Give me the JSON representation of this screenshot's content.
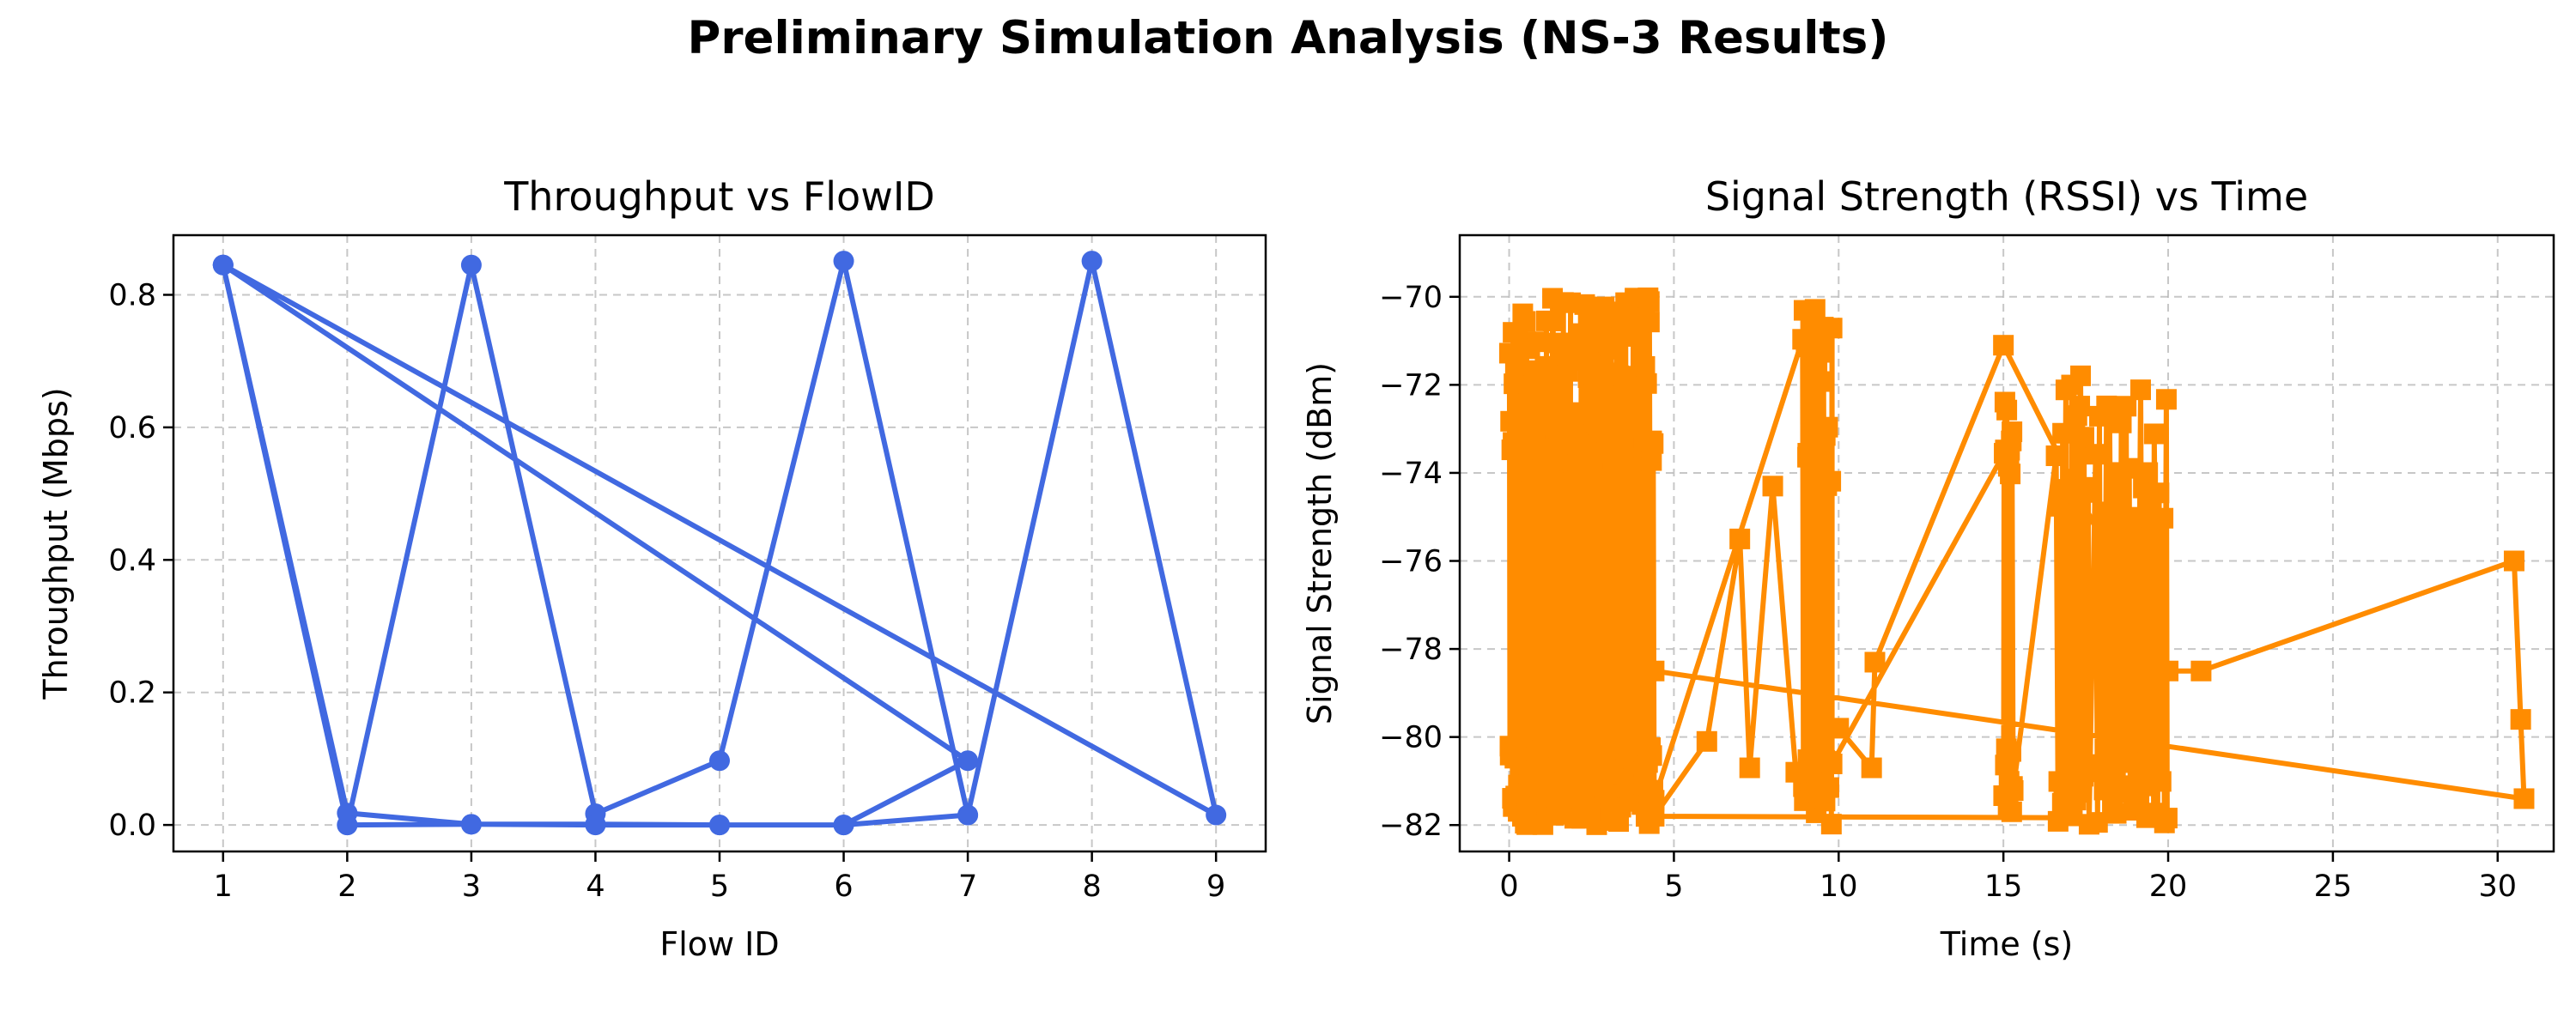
{
  "figure": {
    "title": "Preliminary Simulation Analysis (NS-3 Results)"
  },
  "chart_data": [
    {
      "type": "line",
      "title": "Throughput vs FlowID",
      "xlabel": "Flow ID",
      "ylabel": "Throughput (Mbps)",
      "xlim": [
        0.6,
        9.4
      ],
      "ylim": [
        -0.04,
        0.89
      ],
      "xticks": [
        1,
        2,
        3,
        4,
        5,
        6,
        7,
        8,
        9
      ],
      "yticks": [
        0.0,
        0.2,
        0.4,
        0.6,
        0.8
      ],
      "ytick_labels": [
        "0.0",
        "0.2",
        "0.4",
        "0.6",
        "0.8"
      ],
      "grid": true,
      "color": "#4169E1",
      "marker": "circle",
      "series": [
        {
          "x": [
            1,
            2,
            3,
            4,
            5,
            6,
            7,
            1,
            2,
            3,
            4,
            5,
            6,
            7,
            8,
            9,
            1,
            2,
            3,
            4,
            5,
            6,
            7
          ],
          "values": [
            0.845,
            0.018,
            0.001,
            0.001,
            0.0,
            0.0,
            0.097,
            0.845,
            0.0,
            0.845,
            0.017,
            0.097,
            0.851,
            0.015,
            0.851,
            0.015,
            0.845,
            0.0,
            0.001,
            0.0,
            0.0,
            0.0,
            0.015
          ]
        }
      ]
    },
    {
      "type": "line",
      "title": "Signal Strength (RSSI) vs Time",
      "xlabel": "Time (s)",
      "ylabel": "Signal Strength (dBm)",
      "xlim": [
        -1.5,
        31.7
      ],
      "ylim": [
        -82.6,
        -68.6
      ],
      "xticks": [
        0,
        5,
        10,
        15,
        20,
        25,
        30
      ],
      "yticks": [
        -82,
        -80,
        -78,
        -76,
        -74,
        -72,
        -70
      ],
      "ytick_labels": [
        "−82",
        "−80",
        "−78",
        "−76",
        "−74",
        "−72",
        "−70"
      ],
      "grid": true,
      "color": "#FF8C00",
      "marker": "square",
      "dense_clusters": [
        {
          "x_range": [
            0,
            4.4
          ],
          "points": 260,
          "y_range": [
            -82,
            -70
          ]
        },
        {
          "x_range": [
            8.9,
            9.8
          ],
          "points": 40,
          "y_range": [
            -82,
            -70.2
          ]
        },
        {
          "x_range": [
            15.0,
            15.3
          ],
          "points": 20,
          "y_range": [
            -81.8,
            -71.1
          ]
        },
        {
          "x_range": [
            16.6,
            17.6
          ],
          "points": 30,
          "y_range": [
            -82,
            -71.7
          ]
        },
        {
          "x_range": [
            17.8,
            20.0
          ],
          "points": 40,
          "y_range": [
            -82,
            -71.9
          ]
        }
      ],
      "series": [
        {
          "x": [
            4.4,
            6.0,
            7.0,
            7.3,
            8.0,
            8.7,
            10.0,
            11.0,
            11.1,
            15.0,
            20.0,
            21.0,
            30.5,
            30.7,
            30.8,
            4.4
          ],
          "values": [
            -81.8,
            -80.1,
            -75.5,
            -80.7,
            -74.3,
            -80.8,
            -79.8,
            -80.7,
            -78.3,
            -71.1,
            -78.5,
            -78.5,
            -76.0,
            -79.6,
            -81.4,
            -78.5
          ]
        }
      ]
    }
  ]
}
